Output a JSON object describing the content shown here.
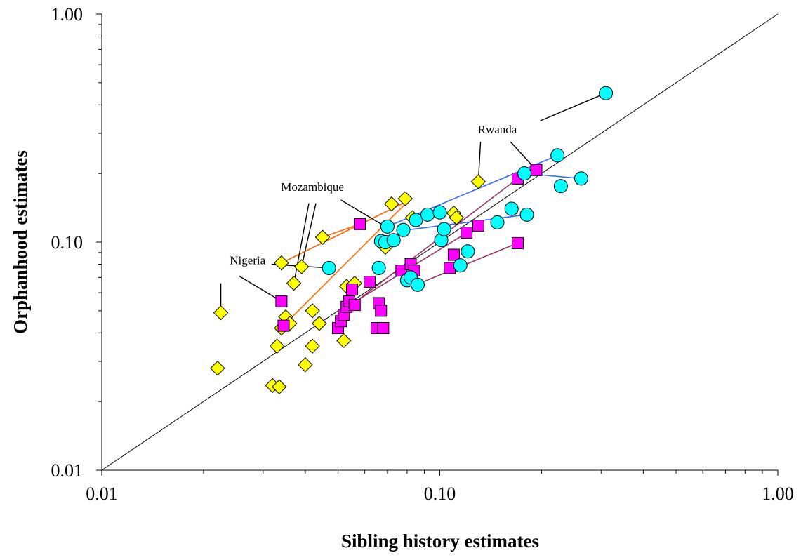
{
  "chart_data": {
    "type": "scatter",
    "title": "",
    "xlabel": "Sibling history estimates",
    "ylabel": "Orphanhood estimates",
    "xscale": "log",
    "yscale": "log",
    "xlim": [
      0.01,
      1.0
    ],
    "ylim": [
      0.01,
      1.0
    ],
    "x_ticks": [
      "0.01",
      "0.10",
      "1.00"
    ],
    "y_ticks": [
      "0.01",
      "0.10",
      "1.00"
    ],
    "grid": false,
    "legend": "none",
    "reference_line": {
      "x": [
        0.01,
        1.0
      ],
      "y": [
        0.01,
        1.0
      ],
      "color": "#000000"
    },
    "colors": {
      "diamond": "#FFFF00",
      "square": "#FF00FF",
      "circle": "#00FFFF",
      "orange_line": "#FF6600",
      "blue_line": "#3366FF",
      "purple_line": "#993366"
    },
    "series": [
      {
        "marker": "diamond",
        "color": "#FFFF00",
        "x": [
          0.022,
          0.0225,
          0.032,
          0.033,
          0.0335,
          0.034,
          0.034,
          0.035,
          0.036,
          0.037,
          0.039,
          0.04,
          0.042,
          0.042,
          0.044,
          0.045,
          0.052,
          0.053,
          0.056,
          0.069,
          0.072,
          0.079,
          0.083,
          0.11,
          0.112,
          0.13
        ],
        "y": [
          0.028,
          0.049,
          0.0235,
          0.035,
          0.0232,
          0.081,
          0.042,
          0.047,
          0.044,
          0.066,
          0.078,
          0.029,
          0.05,
          0.035,
          0.044,
          0.105,
          0.037,
          0.064,
          0.066,
          0.095,
          0.147,
          0.155,
          0.128,
          0.134,
          0.128,
          0.184
        ]
      },
      {
        "marker": "square",
        "color": "#FF00FF",
        "x": [
          0.034,
          0.0345,
          0.05,
          0.051,
          0.052,
          0.053,
          0.054,
          0.055,
          0.056,
          0.058,
          0.062,
          0.065,
          0.066,
          0.067,
          0.068,
          0.077,
          0.082,
          0.084,
          0.107,
          0.11,
          0.12,
          0.13,
          0.17,
          0.17,
          0.193
        ],
        "y": [
          0.055,
          0.043,
          0.042,
          0.045,
          0.048,
          0.052,
          0.055,
          0.062,
          0.053,
          0.12,
          0.067,
          0.042,
          0.054,
          0.05,
          0.042,
          0.075,
          0.08,
          0.075,
          0.077,
          0.088,
          0.11,
          0.118,
          0.099,
          0.19,
          0.207
        ]
      },
      {
        "marker": "circle",
        "color": "#00FFFF",
        "x": [
          0.047,
          0.066,
          0.067,
          0.069,
          0.07,
          0.073,
          0.078,
          0.08,
          0.082,
          0.085,
          0.086,
          0.092,
          0.1,
          0.101,
          0.103,
          0.115,
          0.121,
          0.148,
          0.163,
          0.178,
          0.181,
          0.223,
          0.228,
          0.262,
          0.31
        ],
        "y": [
          0.077,
          0.077,
          0.101,
          0.1,
          0.117,
          0.102,
          0.113,
          0.068,
          0.07,
          0.125,
          0.065,
          0.132,
          0.135,
          0.102,
          0.114,
          0.079,
          0.091,
          0.122,
          0.14,
          0.2,
          0.132,
          0.24,
          0.176,
          0.19,
          0.45
        ]
      }
    ],
    "connector_lines": [
      {
        "color": "#FF6600",
        "x": [
          0.034,
          0.083
        ],
        "y": [
          0.081,
          0.155
        ]
      },
      {
        "color": "#FF6600",
        "x": [
          0.035,
          0.079
        ],
        "y": [
          0.044,
          0.147
        ]
      },
      {
        "color": "#FF6600",
        "x": [
          0.045,
          0.058
        ],
        "y": [
          0.105,
          0.12
        ]
      },
      {
        "color": "#3366FF",
        "x": [
          0.07,
          0.223
        ],
        "y": [
          0.117,
          0.24
        ]
      },
      {
        "color": "#3366FF",
        "x": [
          0.08,
          0.181
        ],
        "y": [
          0.113,
          0.132
        ]
      },
      {
        "color": "#3366FF",
        "x": [
          0.178,
          0.262
        ],
        "y": [
          0.2,
          0.19
        ]
      },
      {
        "color": "#993366",
        "x": [
          0.052,
          0.17
        ],
        "y": [
          0.05,
          0.19
        ]
      },
      {
        "color": "#993366",
        "x": [
          0.053,
          0.13
        ],
        "y": [
          0.052,
          0.118
        ]
      },
      {
        "color": "#993366",
        "x": [
          0.085,
          0.17
        ],
        "y": [
          0.065,
          0.099
        ]
      }
    ],
    "annotations": [
      {
        "text": "Rwanda",
        "x": 0.148,
        "y": 0.3,
        "pointers": [
          {
            "from": [
              0.132,
              0.275
            ],
            "to": [
              0.13,
              0.184
            ]
          },
          {
            "from": [
              0.162,
              0.275
            ],
            "to": [
              0.193,
              0.207
            ]
          },
          {
            "from": [
              0.198,
              0.34
            ],
            "to": [
              0.31,
              0.45
            ]
          }
        ]
      },
      {
        "text": "Mozambique",
        "x": 0.042,
        "y": 0.168,
        "pointers": [
          {
            "from": [
              0.051,
              0.153
            ],
            "to": [
              0.069,
              0.117
            ]
          },
          {
            "from": [
              0.043,
              0.148
            ],
            "to": [
              0.039,
              0.078
            ]
          },
          {
            "from": [
              0.041,
              0.148
            ],
            "to": [
              0.037,
              0.066
            ]
          }
        ]
      },
      {
        "text": "Nigeria",
        "x": 0.027,
        "y": 0.08,
        "pointers": [
          {
            "from": [
              0.0318,
              0.08
            ],
            "to": [
              0.047,
              0.077
            ]
          },
          {
            "from": [
              0.0255,
              0.071
            ],
            "to": [
              0.034,
              0.055
            ]
          },
          {
            "from": [
              0.0225,
              0.066
            ],
            "to": [
              0.0225,
              0.052
            ]
          }
        ]
      }
    ]
  }
}
